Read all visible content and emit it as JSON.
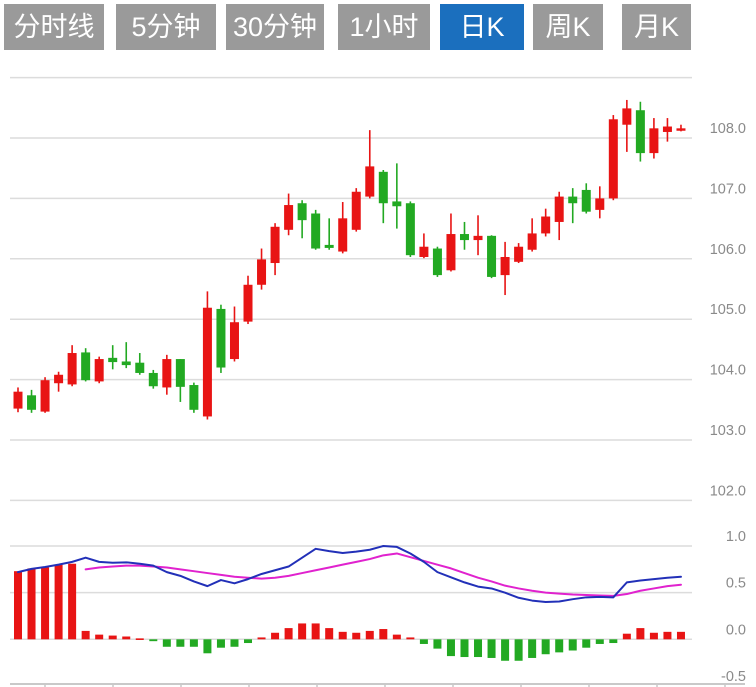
{
  "toolbar": {
    "buttons": [
      {
        "label": "分时线",
        "active": false
      },
      {
        "label": "5分钟",
        "active": false
      },
      {
        "label": "30分钟",
        "active": false
      },
      {
        "label": "1小时",
        "active": false
      },
      {
        "label": "日K",
        "active": true
      },
      {
        "label": "周K",
        "active": false
      },
      {
        "label": "月K",
        "active": false
      }
    ]
  },
  "colors": {
    "up": "#e81414",
    "down": "#22a922",
    "dif_line": "#2230b8",
    "dea_line": "#e022ce",
    "grid": "#dcdcdc",
    "axis_line": "#c9c9c9",
    "axis_text": "#8a8a8a",
    "button_bg": "#9a9a9a",
    "button_active_bg": "#1b6fbe",
    "button_text": "#ffffff"
  },
  "chart_data": {
    "type": "candlestick",
    "title": "",
    "legend": [],
    "grid_on": true,
    "price_axis": {
      "side": "right",
      "gridlines": [
        109,
        108,
        107,
        106,
        105,
        104,
        103,
        102
      ],
      "tick_labels": [
        {
          "v": 108,
          "t": "108.0"
        },
        {
          "v": 107,
          "t": "107.0"
        },
        {
          "v": 106,
          "t": "106.0"
        },
        {
          "v": 105,
          "t": "105.0"
        },
        {
          "v": 104,
          "t": "104.0"
        },
        {
          "v": 103,
          "t": "103.0"
        },
        {
          "v": 102,
          "t": "102.0"
        }
      ]
    },
    "candles_ohlc_columns": [
      "open",
      "high",
      "low",
      "close"
    ],
    "candles": [
      [
        103.52,
        103.87,
        103.46,
        103.8
      ],
      [
        103.74,
        103.83,
        103.45,
        103.5
      ],
      [
        103.47,
        104.04,
        103.45,
        103.99
      ],
      [
        103.94,
        104.13,
        103.8,
        104.08
      ],
      [
        103.92,
        104.57,
        103.89,
        104.44
      ],
      [
        104.45,
        104.52,
        103.97,
        103.99
      ],
      [
        103.97,
        104.38,
        103.94,
        104.34
      ],
      [
        104.36,
        104.57,
        104.17,
        104.29
      ],
      [
        104.3,
        104.62,
        104.19,
        104.24
      ],
      [
        104.28,
        104.44,
        104.08,
        104.11
      ],
      [
        104.11,
        104.16,
        103.85,
        103.89
      ],
      [
        103.87,
        104.41,
        103.75,
        104.34
      ],
      [
        104.34,
        104.34,
        103.63,
        103.88
      ],
      [
        103.91,
        103.95,
        103.45,
        103.5
      ],
      [
        103.39,
        105.46,
        103.34,
        105.19
      ],
      [
        105.17,
        105.24,
        104.11,
        104.2
      ],
      [
        104.34,
        105.21,
        104.3,
        104.95
      ],
      [
        104.96,
        105.72,
        104.92,
        105.57
      ],
      [
        105.57,
        106.17,
        105.49,
        105.99
      ],
      [
        105.93,
        106.59,
        105.73,
        106.53
      ],
      [
        106.48,
        107.08,
        106.39,
        106.89
      ],
      [
        106.92,
        106.97,
        106.34,
        106.64
      ],
      [
        106.75,
        106.81,
        106.15,
        106.17
      ],
      [
        106.23,
        106.67,
        106.15,
        106.18
      ],
      [
        106.12,
        106.94,
        106.09,
        106.67
      ],
      [
        106.48,
        107.17,
        106.45,
        107.11
      ],
      [
        107.03,
        108.13,
        107.0,
        107.53
      ],
      [
        107.44,
        107.47,
        106.59,
        106.92
      ],
      [
        106.95,
        107.58,
        106.5,
        106.87
      ],
      [
        106.92,
        106.95,
        106.03,
        106.06
      ],
      [
        106.03,
        106.42,
        106.01,
        106.2
      ],
      [
        106.17,
        106.2,
        105.7,
        105.73
      ],
      [
        105.81,
        106.75,
        105.79,
        106.41
      ],
      [
        106.41,
        106.61,
        106.15,
        106.31
      ],
      [
        106.31,
        106.72,
        106.06,
        106.38
      ],
      [
        106.38,
        106.39,
        105.68,
        105.7
      ],
      [
        105.73,
        106.28,
        105.4,
        106.03
      ],
      [
        105.95,
        106.26,
        105.93,
        106.2
      ],
      [
        106.15,
        106.67,
        106.12,
        106.42
      ],
      [
        106.42,
        106.83,
        106.37,
        106.7
      ],
      [
        106.61,
        107.11,
        106.31,
        107.03
      ],
      [
        107.03,
        107.17,
        106.59,
        106.92
      ],
      [
        107.14,
        107.25,
        106.75,
        106.78
      ],
      [
        106.81,
        107.2,
        106.67,
        107.0
      ],
      [
        107.0,
        108.38,
        106.97,
        108.31
      ],
      [
        108.22,
        108.63,
        107.77,
        108.49
      ],
      [
        108.46,
        108.6,
        107.61,
        107.75
      ],
      [
        107.75,
        108.33,
        107.66,
        108.16
      ],
      [
        108.1,
        108.33,
        107.94,
        108.19
      ],
      [
        108.12,
        108.22,
        108.11,
        108.16
      ]
    ],
    "macd": {
      "axis_labels": [
        {
          "v": 1.0,
          "t": "1.0"
        },
        {
          "v": 0.5,
          "t": "0.5"
        },
        {
          "v": 0.0,
          "t": "0.0"
        },
        {
          "v": -0.5,
          "t": "-0.5"
        }
      ],
      "gridlines": [
        1.0,
        0.5,
        0.0
      ],
      "histogram": [
        0.73,
        0.76,
        0.77,
        0.8,
        0.81,
        0.09,
        0.05,
        0.04,
        0.03,
        0.01,
        -0.02,
        -0.08,
        -0.08,
        -0.08,
        -0.15,
        -0.09,
        -0.08,
        -0.04,
        0.02,
        0.07,
        0.12,
        0.17,
        0.17,
        0.12,
        0.08,
        0.07,
        0.09,
        0.11,
        0.05,
        0.02,
        -0.05,
        -0.1,
        -0.18,
        -0.19,
        -0.19,
        -0.2,
        -0.23,
        -0.23,
        -0.2,
        -0.16,
        -0.14,
        -0.12,
        -0.09,
        -0.05,
        -0.04,
        0.06,
        0.12,
        0.07,
        0.08,
        0.08
      ],
      "dif": [
        0.72,
        0.755,
        0.775,
        0.8,
        0.83,
        0.875,
        0.83,
        0.82,
        0.825,
        0.81,
        0.79,
        0.72,
        0.68,
        0.62,
        0.57,
        0.635,
        0.6,
        0.645,
        0.7,
        0.74,
        0.78,
        0.875,
        0.97,
        0.945,
        0.925,
        0.94,
        0.96,
        1.0,
        0.99,
        0.92,
        0.83,
        0.72,
        0.665,
        0.61,
        0.565,
        0.545,
        0.5,
        0.445,
        0.415,
        0.4,
        0.405,
        0.43,
        0.45,
        0.455,
        0.45,
        0.61,
        0.63,
        0.645,
        0.66,
        0.67
      ],
      "dea": [
        null,
        null,
        null,
        null,
        null,
        0.75,
        0.77,
        0.78,
        0.79,
        0.79,
        0.78,
        0.77,
        0.75,
        0.73,
        0.71,
        0.69,
        0.67,
        0.66,
        0.65,
        0.66,
        0.68,
        0.71,
        0.74,
        0.77,
        0.8,
        0.83,
        0.86,
        0.9,
        0.92,
        0.88,
        0.84,
        0.8,
        0.76,
        0.71,
        0.66,
        0.62,
        0.575,
        0.545,
        0.52,
        0.5,
        0.49,
        0.48,
        0.475,
        0.47,
        0.465,
        0.485,
        0.52,
        0.545,
        0.57,
        0.585
      ]
    }
  }
}
